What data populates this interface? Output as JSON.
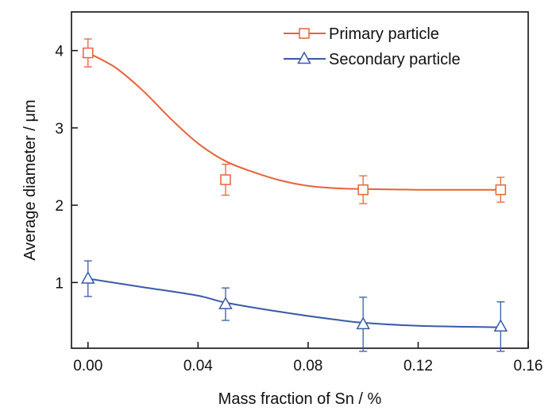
{
  "chart_data": {
    "type": "scatter",
    "xlabel": "Mass fraction of Sn / %",
    "ylabel": "Average diameter / μm",
    "xlim": [
      -0.006,
      0.16
    ],
    "ylim": [
      0.15,
      4.5
    ],
    "x_ticks": [
      "0.00",
      "0.04",
      "0.08",
      "0.12",
      "0.16"
    ],
    "x_tick_values": [
      0.0,
      0.04,
      0.08,
      0.12,
      0.16
    ],
    "y_ticks": [
      "1",
      "2",
      "3",
      "4"
    ],
    "y_tick_values": [
      1,
      2,
      3,
      4
    ],
    "grid": false,
    "legend_position": "top-right",
    "series": [
      {
        "name": "Primary particle",
        "color": "#e8623a",
        "marker": "square",
        "x": [
          0.0,
          0.05,
          0.1,
          0.15
        ],
        "y": [
          3.97,
          2.33,
          2.2,
          2.2
        ],
        "err": [
          0.18,
          0.2,
          0.18,
          0.16
        ],
        "fit": [
          [
            0.0,
            3.97
          ],
          [
            0.01,
            3.78
          ],
          [
            0.02,
            3.48
          ],
          [
            0.03,
            3.12
          ],
          [
            0.04,
            2.8
          ],
          [
            0.05,
            2.57
          ],
          [
            0.06,
            2.43
          ],
          [
            0.07,
            2.32
          ],
          [
            0.08,
            2.25
          ],
          [
            0.09,
            2.22
          ],
          [
            0.1,
            2.21
          ],
          [
            0.12,
            2.2
          ],
          [
            0.15,
            2.2
          ]
        ]
      },
      {
        "name": "Secondary particle",
        "color": "#3a5aa8",
        "marker": "triangle",
        "x": [
          0.0,
          0.05,
          0.1,
          0.15
        ],
        "y": [
          1.05,
          0.72,
          0.46,
          0.43
        ],
        "err": [
          0.23,
          0.21,
          0.35,
          0.32
        ],
        "fit": [
          [
            0.0,
            1.05
          ],
          [
            0.02,
            0.94
          ],
          [
            0.04,
            0.83
          ],
          [
            0.05,
            0.74
          ],
          [
            0.07,
            0.62
          ],
          [
            0.09,
            0.52
          ],
          [
            0.1,
            0.48
          ],
          [
            0.12,
            0.44
          ],
          [
            0.15,
            0.42
          ]
        ]
      }
    ]
  }
}
